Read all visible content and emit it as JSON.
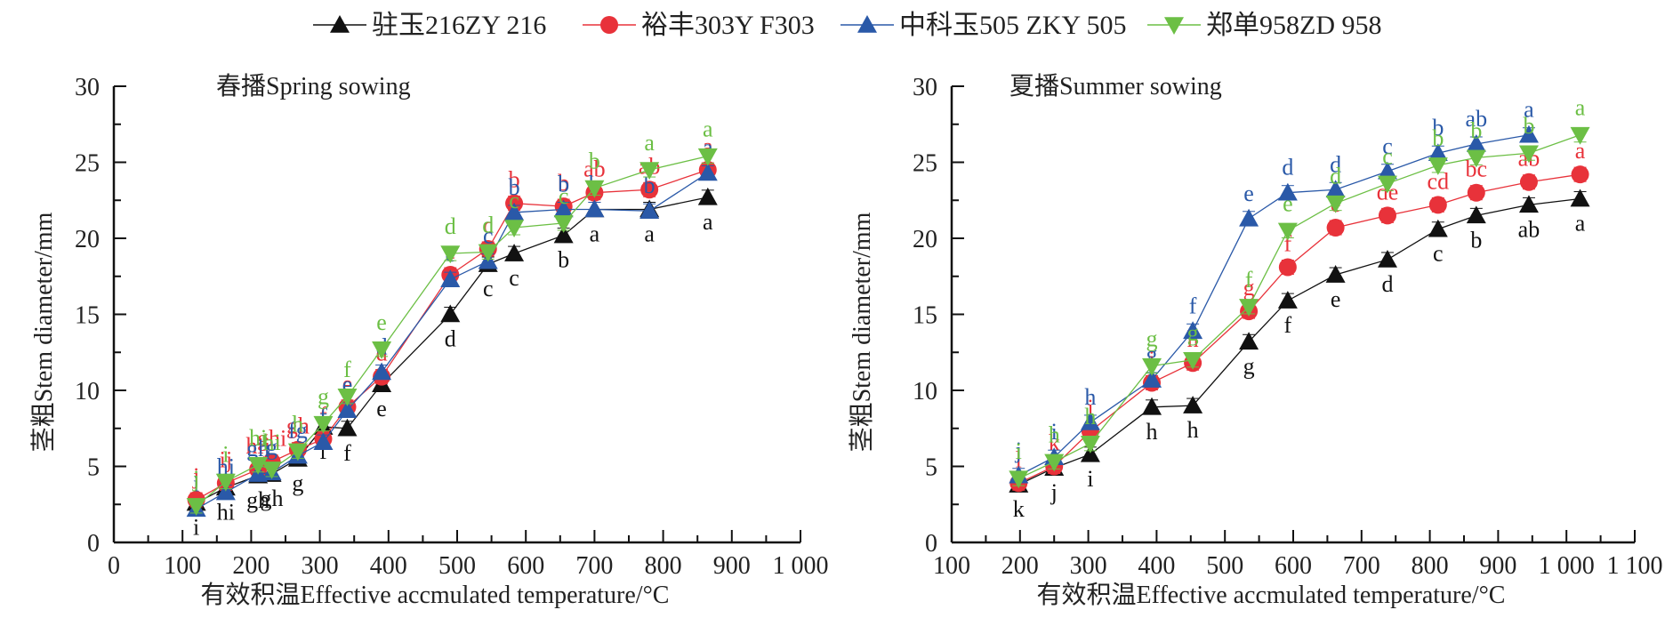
{
  "legend": [
    {
      "name": "驻玉216ZY 216",
      "color": "#111111",
      "marker": "triangle-up"
    },
    {
      "name": "裕丰303Y F303",
      "color": "#e8323a",
      "marker": "circle"
    },
    {
      "name": "中科玉505 ZKY 505",
      "color": "#2a59a8",
      "marker": "triangle-up"
    },
    {
      "name": "郑单958ZD 958",
      "color": "#6cbf45",
      "marker": "triangle-down"
    }
  ],
  "chart_data": [
    {
      "type": "line",
      "title": "春播Spring sowing",
      "xlabel": "有效积温Effective accmulated temperature/°C",
      "ylabel": "茎粗Stem diameter/mm",
      "xlim": [
        0,
        1000
      ],
      "ylim": [
        0,
        30
      ],
      "xticks": [
        0,
        100,
        200,
        300,
        400,
        500,
        600,
        700,
        800,
        900,
        1000
      ],
      "xtick_labels": [
        "0",
        "100",
        "200",
        "300",
        "400",
        "500",
        "600",
        "700",
        "800",
        "900",
        "1 000"
      ],
      "yticks": [
        0,
        5,
        10,
        15,
        20,
        25,
        30
      ],
      "ytick_labels": [
        "0",
        "5",
        "10",
        "15",
        "20",
        "25",
        "30"
      ],
      "x": [
        120,
        163,
        210,
        230,
        268,
        305,
        340,
        390,
        490,
        545,
        583,
        655,
        700,
        780,
        865
      ],
      "series": [
        {
          "name": "驻玉216ZY 216",
          "values": [
            2.6,
            3.6,
            4.4,
            4.5,
            5.5,
            7.6,
            7.5,
            10.4,
            15.0,
            18.3,
            19.0,
            20.2,
            21.9,
            21.9,
            22.7
          ],
          "labels": [
            "i",
            "hi",
            "gh",
            "gh",
            "g",
            "f",
            "f",
            "e",
            "d",
            "c",
            "c",
            "b",
            "a",
            "a",
            "a"
          ]
        },
        {
          "name": "裕丰303Y F303",
          "values": [
            2.8,
            3.9,
            4.8,
            5.3,
            6.1,
            6.8,
            8.9,
            10.9,
            17.6,
            19.3,
            22.3,
            22.1,
            23.0,
            23.2,
            24.5
          ],
          "labels": [
            "j",
            "ij",
            "hij",
            "ghi",
            "gh",
            "f",
            "e",
            "d",
            "c",
            "c",
            "b",
            "b",
            "ab",
            "ab",
            "a"
          ]
        },
        {
          "name": "中科玉505 ZKY 505",
          "values": [
            2.2,
            3.3,
            4.5,
            4.6,
            5.7,
            6.6,
            8.7,
            11.2,
            17.3,
            18.5,
            21.7,
            21.9,
            21.9,
            21.8,
            24.3
          ],
          "labels": [
            "i",
            "hi",
            "gh",
            "g",
            "fg",
            "f",
            "e",
            "d",
            "c",
            "c",
            "b",
            "b",
            "b",
            "b",
            "a"
          ]
        },
        {
          "name": "郑单958ZD 958",
          "values": [
            2.4,
            4.0,
            5.1,
            4.8,
            6.0,
            7.8,
            9.6,
            12.7,
            19.0,
            19.1,
            20.7,
            21.0,
            23.3,
            24.5,
            25.4
          ],
          "labels": [
            "j",
            "i",
            "hi",
            "hi",
            "h",
            "g",
            "f",
            "e",
            "d",
            "d",
            "c",
            "c",
            "b",
            "a",
            "a"
          ]
        }
      ]
    },
    {
      "type": "line",
      "title": "夏播Summer sowing",
      "xlabel": "有效积温Effective accmulated temperature/°C",
      "ylabel": "茎粗Stem diameter/mm",
      "xlim": [
        100,
        1100
      ],
      "ylim": [
        0,
        30
      ],
      "xticks": [
        100,
        200,
        300,
        400,
        500,
        600,
        700,
        800,
        900,
        1000,
        1100
      ],
      "xtick_labels": [
        "100",
        "200",
        "300",
        "400",
        "500",
        "600",
        "700",
        "800",
        "900",
        "1 000",
        "1 100"
      ],
      "yticks": [
        0,
        5,
        10,
        15,
        20,
        25,
        30
      ],
      "ytick_labels": [
        "0",
        "5",
        "10",
        "15",
        "20",
        "25",
        "30"
      ],
      "x": [
        198,
        250,
        303,
        393,
        453,
        535,
        592,
        662,
        738,
        812,
        868,
        945,
        1020
      ],
      "series": [
        {
          "name": "驻玉216ZY 216",
          "values": [
            3.8,
            4.9,
            5.8,
            8.9,
            9.0,
            13.2,
            15.9,
            17.6,
            18.6,
            20.6,
            21.5,
            22.2,
            22.6
          ],
          "labels": [
            "k",
            "j",
            "i",
            "h",
            "h",
            "g",
            "f",
            "e",
            "d",
            "c",
            "b",
            "ab",
            "a"
          ]
        },
        {
          "name": "裕丰303Y F303",
          "values": [
            3.9,
            5.0,
            7.3,
            10.5,
            11.8,
            15.2,
            18.1,
            20.7,
            21.5,
            22.2,
            23.0,
            23.7,
            24.2
          ],
          "labels": [
            "l",
            "k",
            "j",
            "i",
            "h",
            "g",
            "f",
            "e",
            "de",
            "cd",
            "bc",
            "ab",
            "a"
          ]
        },
        {
          "name": "中科玉505 ZKY 505",
          "values": [
            4.4,
            5.6,
            7.9,
            10.7,
            13.9,
            21.3,
            23.0,
            23.2,
            24.4,
            25.6,
            26.2,
            26.8,
            null
          ],
          "labels": [
            "j",
            "i",
            "h",
            "g",
            "f",
            "e",
            "d",
            "d",
            "c",
            "b",
            "ab",
            "a",
            ""
          ]
        },
        {
          "name": "郑单958ZD 958",
          "values": [
            4.2,
            5.3,
            6.5,
            11.6,
            12.0,
            15.5,
            20.5,
            22.3,
            23.6,
            24.8,
            25.3,
            25.6,
            26.8
          ],
          "labels": [
            "i",
            "h",
            "h",
            "g",
            "g",
            "f",
            "e",
            "d",
            "c",
            "b",
            "b",
            "b",
            "a"
          ]
        }
      ]
    }
  ]
}
